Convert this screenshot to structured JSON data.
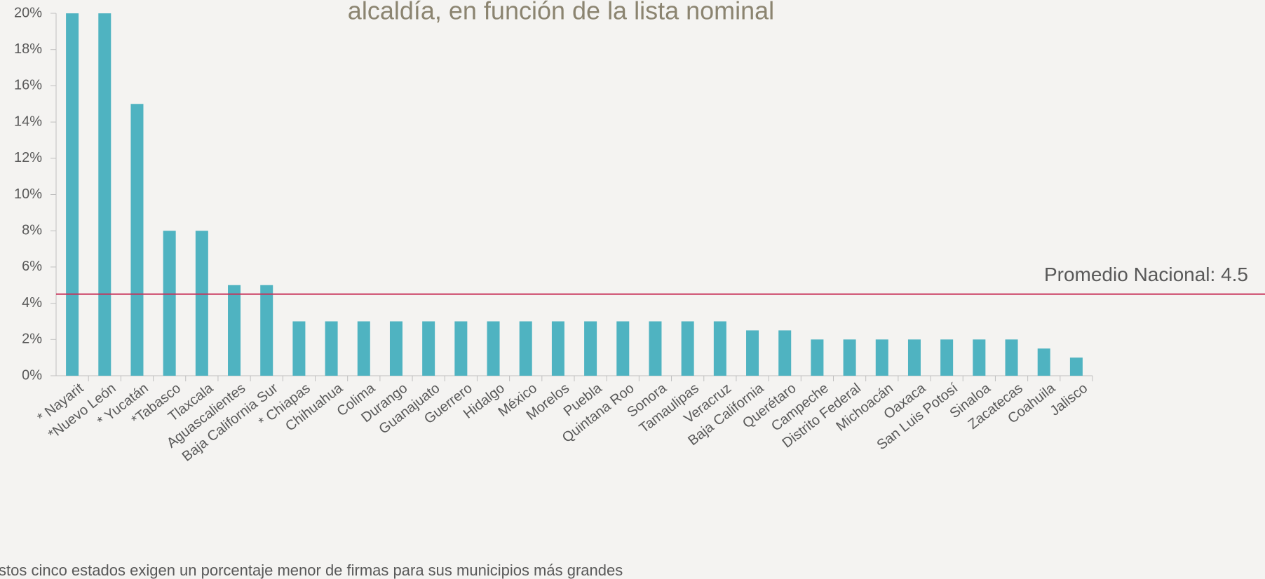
{
  "chart_data": {
    "type": "bar",
    "title": "alcaldía, en función de la lista nominal",
    "footnote": "stos cinco estados exigen un porcentaje menor de firmas para sus municipios más grandes",
    "categories": [
      "* Nayarit",
      "*Nuevo León",
      "* Yucatán",
      "*Tabasco",
      "Tlaxcala",
      "Aguascalientes",
      "Baja California Sur",
      "* Chiapas",
      "Chihuahua",
      "Colima",
      "Durango",
      "Guanajuato",
      "Guerrero",
      "Hidalgo",
      "México",
      "Morelos",
      "Puebla",
      "Quintana Roo",
      "Sonora",
      "Tamaulipas",
      "Veracruz",
      "Baja California",
      "Querétaro",
      "Campeche",
      "Distrito Federal",
      "Michoacán",
      "Oaxaca",
      "San Luis Potosí",
      "Sinaloa",
      "Zacatecas",
      "Coahuila",
      "Jalisco"
    ],
    "values": [
      20,
      20,
      15,
      8,
      8,
      5,
      5,
      3,
      3,
      3,
      3,
      3,
      3,
      3,
      3,
      3,
      3,
      3,
      3,
      3,
      3,
      2.5,
      2.5,
      2,
      2,
      2,
      2,
      2,
      2,
      2,
      1.5,
      1
    ],
    "color": "#4fb3c1",
    "ylim": [
      0,
      20
    ],
    "yticks": [
      {
        "value": 0,
        "label": "0%"
      },
      {
        "value": 2,
        "label": "2%"
      },
      {
        "value": 4,
        "label": "4%"
      },
      {
        "value": 6,
        "label": "6%"
      },
      {
        "value": 8,
        "label": "8%"
      },
      {
        "value": 10,
        "label": "10%"
      },
      {
        "value": 12,
        "label": "12%"
      },
      {
        "value": 14,
        "label": "14%"
      },
      {
        "value": 16,
        "label": "16%"
      },
      {
        "value": 18,
        "label": "18%"
      },
      {
        "value": 20,
        "label": "20%"
      }
    ],
    "reference_line": {
      "value": 4.5,
      "label": "Promedio Nacional: 4.5",
      "color": "#c8325a"
    }
  }
}
